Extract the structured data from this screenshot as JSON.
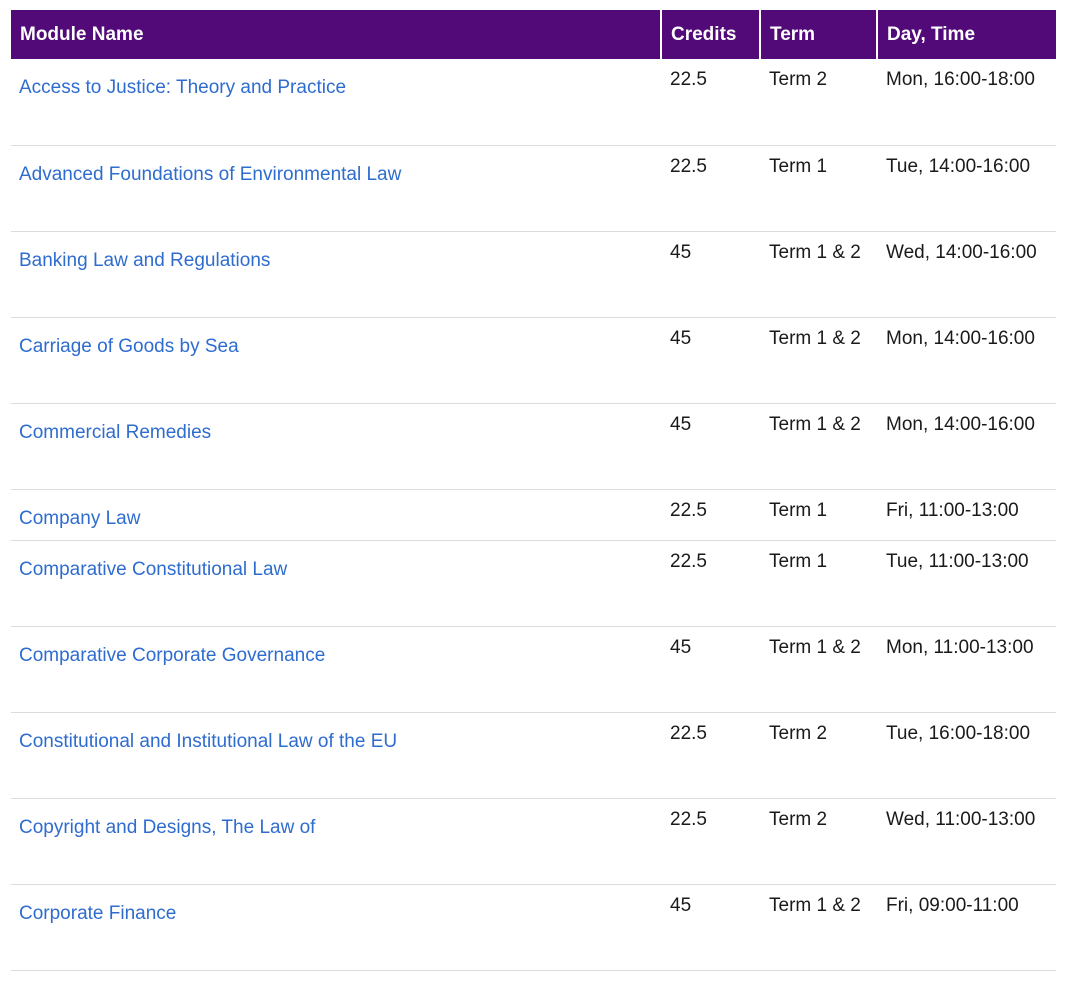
{
  "table": {
    "headers": {
      "name": "Module Name",
      "credits": "Credits",
      "term": "Term",
      "day_time": "Day, Time"
    },
    "rows": [
      {
        "name": "Access to Justice: Theory and Practice",
        "credits": "22.5",
        "term": "Term 2",
        "day_time": "Mon, 16:00-18:00"
      },
      {
        "name": "Advanced Foundations of Environmental Law",
        "credits": "22.5",
        "term": "Term 1",
        "day_time": "Tue, 14:00-16:00"
      },
      {
        "name": "Banking Law and Regulations",
        "credits": "45",
        "term": "Term 1 & 2",
        "day_time": "Wed, 14:00-16:00"
      },
      {
        "name": "Carriage of Goods by Sea",
        "credits": "45",
        "term": "Term 1 & 2",
        "day_time": "Mon, 14:00-16:00"
      },
      {
        "name": "Commercial Remedies",
        "credits": "45",
        "term": "Term 1 & 2",
        "day_time": "Mon, 14:00-16:00"
      },
      {
        "name": "Company Law",
        "credits": "22.5",
        "term": "Term 1",
        "day_time": "Fri, 11:00-13:00"
      },
      {
        "name": "Comparative Constitutional Law",
        "credits": "22.5",
        "term": "Term 1",
        "day_time": "Tue, 11:00-13:00"
      },
      {
        "name": "Comparative Corporate Governance",
        "credits": "45",
        "term": "Term 1 & 2",
        "day_time": "Mon, 11:00-13:00"
      },
      {
        "name": "Constitutional and Institutional Law of the EU",
        "credits": "22.5",
        "term": "Term 2",
        "day_time": "Tue, 16:00-18:00"
      },
      {
        "name": "Copyright and Designs, The Law of",
        "credits": "22.5",
        "term": "Term 2",
        "day_time": "Wed, 11:00-13:00"
      },
      {
        "name": "Corporate Finance",
        "credits": "45",
        "term": "Term 1 & 2",
        "day_time": "Fri, 09:00-11:00"
      }
    ]
  },
  "colors": {
    "header_bg": "#520a78",
    "link": "#2e6ccf"
  }
}
